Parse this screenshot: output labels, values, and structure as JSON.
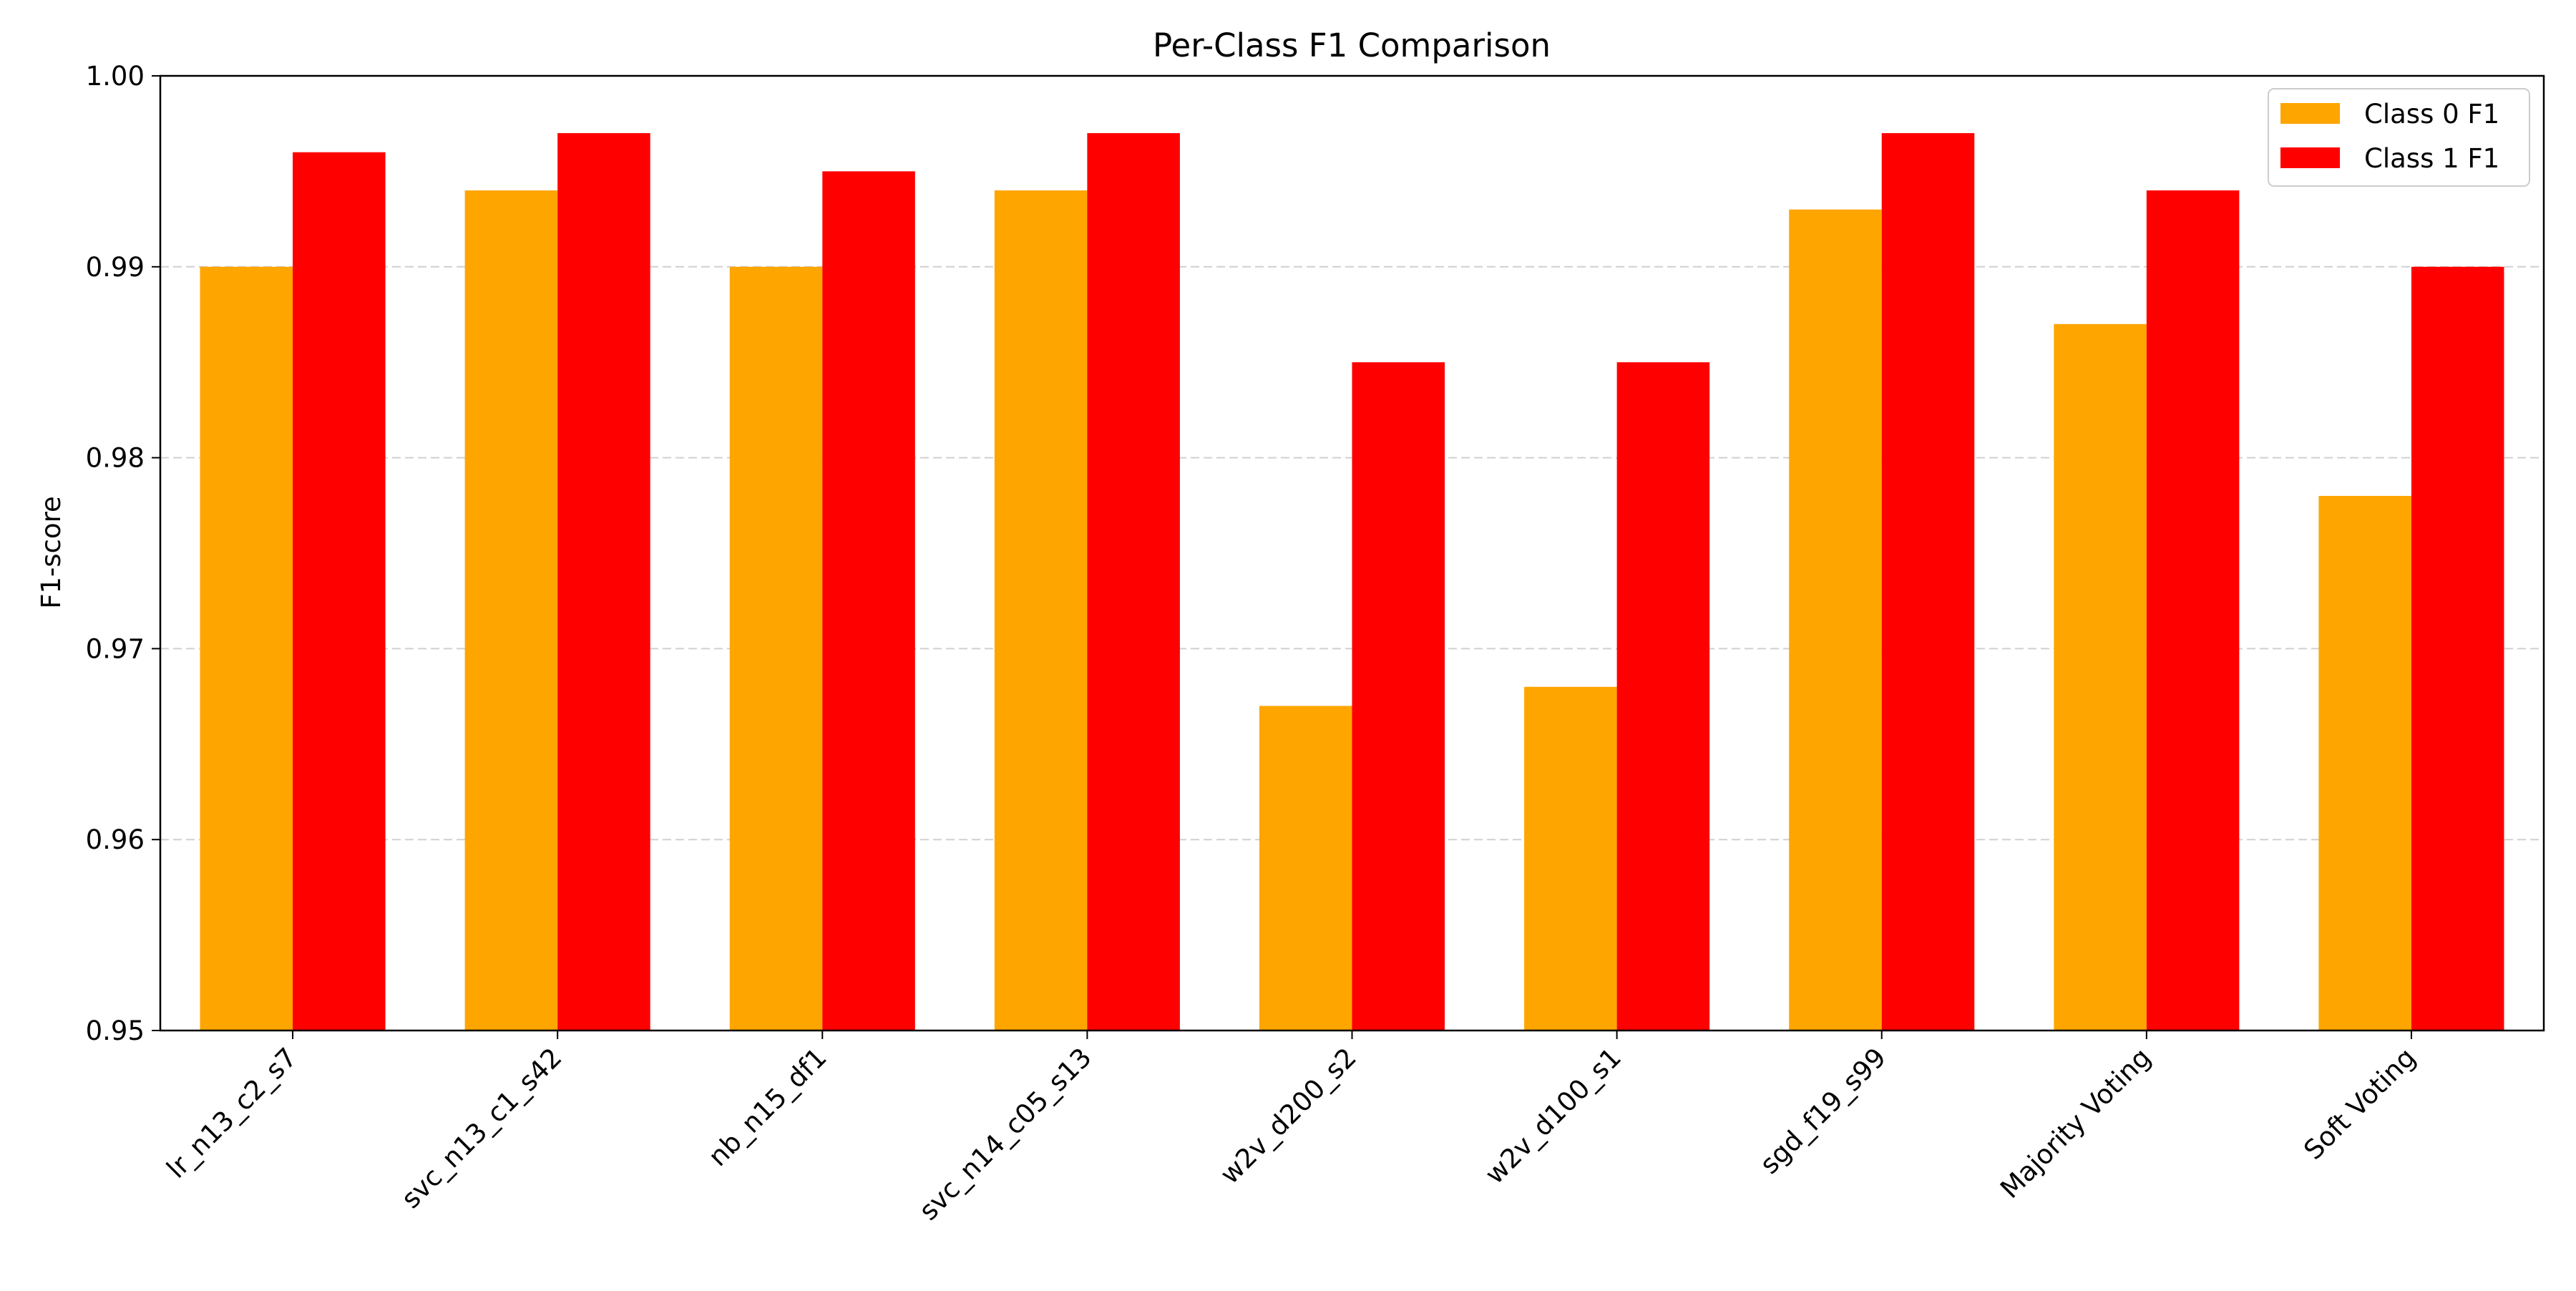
{
  "chart_data": {
    "type": "bar",
    "title": "Per-Class F1 Comparison",
    "xlabel": "",
    "ylabel": "F1-score",
    "ylim": [
      0.95,
      1.0
    ],
    "yticks": [
      "0.95",
      "0.96",
      "0.97",
      "0.98",
      "0.99",
      "1.00"
    ],
    "ytick_values": [
      0.95,
      0.96,
      0.97,
      0.98,
      0.99,
      1.0
    ],
    "grid": "y-dashed",
    "legend_position": "top-right",
    "categories": [
      "lr_n13_c2_s7",
      "svc_n13_c1_s42",
      "nb_n15_df1",
      "svc_n14_c05_s13",
      "w2v_d200_s2",
      "w2v_d100_s1",
      "sgd_f19_s99",
      "Majority Voting",
      "Soft Voting"
    ],
    "series": [
      {
        "name": "Class 0 F1",
        "color": "#ffa500",
        "values": [
          0.99,
          0.994,
          0.99,
          0.994,
          0.967,
          0.968,
          0.993,
          0.987,
          0.978
        ]
      },
      {
        "name": "Class 1 F1",
        "color": "#ff0000",
        "values": [
          0.996,
          0.997,
          0.995,
          0.997,
          0.985,
          0.985,
          0.997,
          0.994,
          0.99
        ]
      }
    ]
  }
}
